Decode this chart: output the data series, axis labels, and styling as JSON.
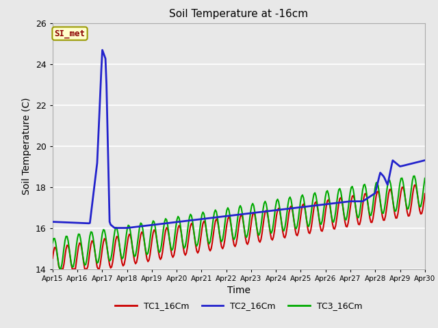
{
  "title": "Soil Temperature at -16cm",
  "xlabel": "Time",
  "ylabel": "Soil Temperature (C)",
  "ylim": [
    14,
    26
  ],
  "xlim": [
    0,
    15
  ],
  "fig_bg_color": "#e8e8e8",
  "plot_bg_color": "#e8e8e8",
  "grid_color": "#ffffff",
  "annotation_text": "SI_met",
  "annotation_text_color": "#8b0000",
  "annotation_bg_color": "#ffffcc",
  "annotation_border_color": "#999900",
  "x_tick_labels": [
    "Apr 15",
    "Apr 16",
    "Apr 17",
    "Apr 18",
    "Apr 19",
    "Apr 20",
    "Apr 21",
    "Apr 22",
    "Apr 23",
    "Apr 24",
    "Apr 25",
    "Apr 26",
    "Apr 27",
    "Apr 28",
    "Apr 29",
    "Apr 30"
  ],
  "legend_labels": [
    "TC1_16Cm",
    "TC2_16Cm",
    "TC3_16Cm"
  ],
  "tc1_color": "#cc0000",
  "tc2_color": "#2222cc",
  "tc3_color": "#00aa00",
  "line_width": 1.5,
  "figsize": [
    6.4,
    4.8
  ],
  "dpi": 100
}
